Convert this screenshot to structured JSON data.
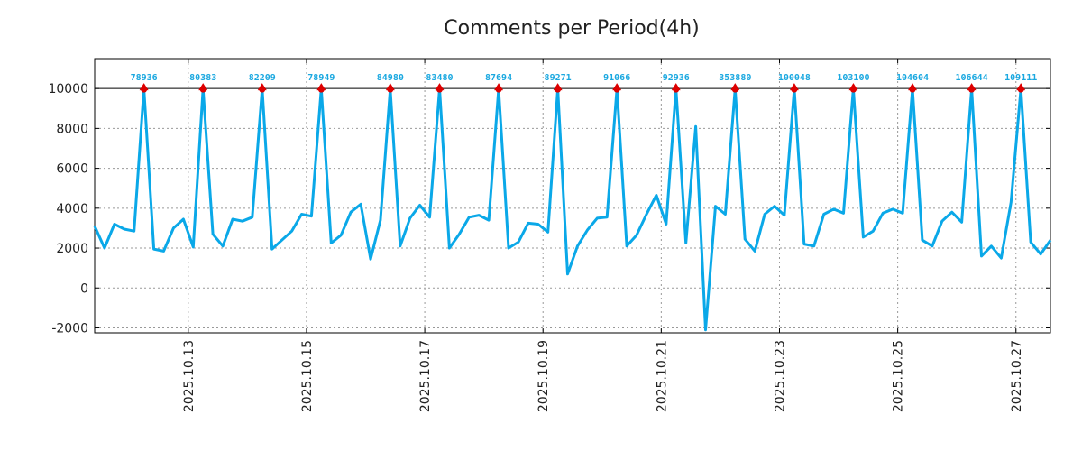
{
  "chart_data": {
    "type": "line",
    "title": "Comments per Period(4h)",
    "xlabel": "",
    "ylabel": "",
    "ylim": [
      -2250,
      11500
    ],
    "xlim": [
      0,
      97
    ],
    "yticks": [
      -2000,
      0,
      2000,
      4000,
      6000,
      8000,
      10000
    ],
    "ytick_labels": [
      "-2000",
      "0",
      "2000",
      "4000",
      "6000",
      "8000",
      "10000"
    ],
    "xticks": [
      {
        "x": 9.5,
        "label": "2025.10.13"
      },
      {
        "x": 21.5,
        "label": "2025.10.15"
      },
      {
        "x": 33.5,
        "label": "2025.10.17"
      },
      {
        "x": 45.5,
        "label": "2025.10.19"
      },
      {
        "x": 57.5,
        "label": "2025.10.21"
      },
      {
        "x": 69.5,
        "label": "2025.10.23"
      },
      {
        "x": 81.5,
        "label": "2025.10.25"
      },
      {
        "x": 93.5,
        "label": "2025.10.27"
      }
    ],
    "cap_line": 10000,
    "grid": true,
    "colors": {
      "line": "#0aa8e8",
      "marker": "#dd0000",
      "label": "#1aa8e0",
      "grid": "#999999",
      "axis": "#000000"
    },
    "series": [
      {
        "name": "comments",
        "values": [
          3100,
          2000,
          3200,
          2950,
          2850,
          10000,
          1950,
          1850,
          3000,
          3450,
          2050,
          10000,
          2700,
          2100,
          3450,
          3350,
          3550,
          10000,
          1950,
          2400,
          2850,
          3700,
          3600,
          10000,
          2250,
          2650,
          3800,
          4200,
          1450,
          3400,
          10000,
          2100,
          3500,
          4150,
          3550,
          10000,
          2000,
          2700,
          3550,
          3650,
          3400,
          10000,
          2000,
          2300,
          3250,
          3200,
          2800,
          10000,
          700,
          2100,
          2900,
          3500,
          3550,
          10000,
          2100,
          2650,
          3700,
          4650,
          3200,
          10000,
          2250,
          8100,
          -2100,
          4100,
          3700,
          10000,
          2450,
          1850,
          3700,
          4100,
          3650,
          10000,
          2200,
          2100,
          3700,
          3950,
          3750,
          10000,
          2550,
          2850,
          3750,
          3950,
          3750,
          10000,
          2400,
          2100,
          3350,
          3800,
          3300,
          10000,
          1600,
          2100,
          1500,
          4300,
          10000,
          2300,
          1700,
          2400
        ]
      }
    ],
    "peaks": [
      {
        "x": 5,
        "label": "78936"
      },
      {
        "x": 11,
        "label": "80383"
      },
      {
        "x": 17,
        "label": "82209"
      },
      {
        "x": 23,
        "label": "78949"
      },
      {
        "x": 30,
        "label": "84980"
      },
      {
        "x": 35,
        "label": "83480"
      },
      {
        "x": 41,
        "label": "87694"
      },
      {
        "x": 47,
        "label": "89271"
      },
      {
        "x": 53,
        "label": "91066"
      },
      {
        "x": 59,
        "label": "92936"
      },
      {
        "x": 65,
        "label": "353880"
      },
      {
        "x": 71,
        "label": "100048"
      },
      {
        "x": 77,
        "label": "103100"
      },
      {
        "x": 83,
        "label": "104604"
      },
      {
        "x": 89,
        "label": "106644"
      },
      {
        "x": 94,
        "label": "109111"
      }
    ]
  }
}
